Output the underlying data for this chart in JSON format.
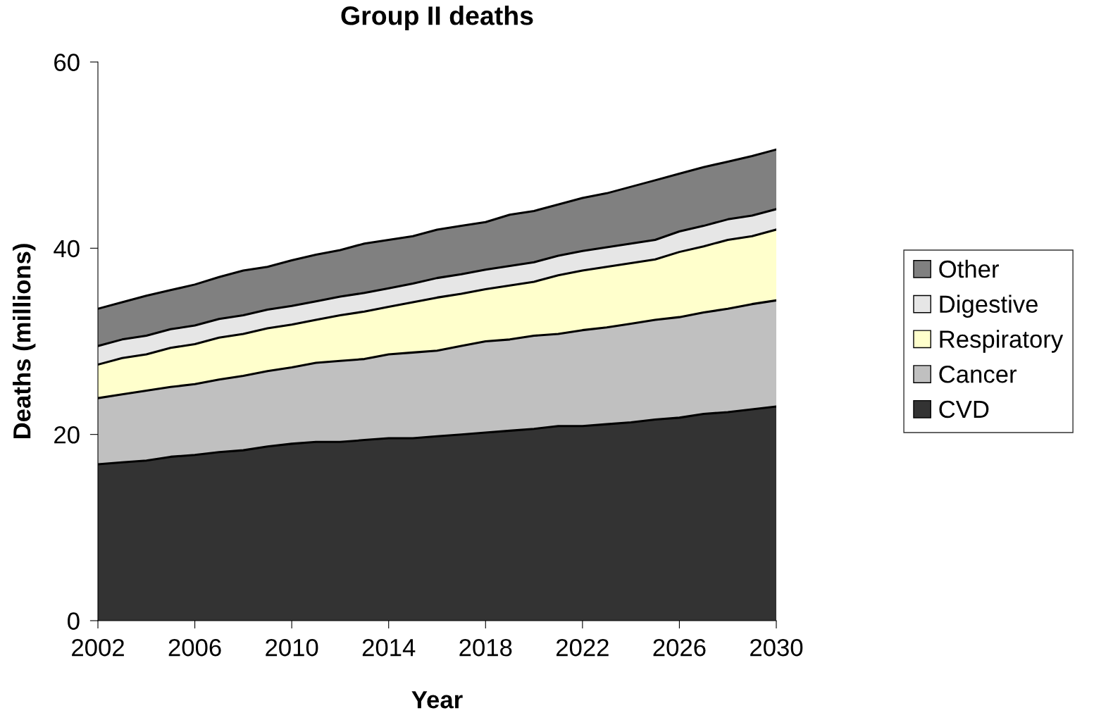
{
  "chart_data": {
    "type": "area",
    "stacked": true,
    "title": "Group II deaths",
    "xlabel": "Year",
    "ylabel": "Deaths (millions)",
    "x": [
      2002,
      2003,
      2004,
      2005,
      2006,
      2007,
      2008,
      2009,
      2010,
      2011,
      2012,
      2013,
      2014,
      2015,
      2016,
      2017,
      2018,
      2019,
      2020,
      2021,
      2022,
      2023,
      2024,
      2025,
      2026,
      2027,
      2028,
      2029,
      2030
    ],
    "series": [
      {
        "name": "CVD",
        "color": "#333333",
        "values": [
          16.8,
          17.0,
          17.2,
          17.6,
          17.8,
          18.1,
          18.3,
          18.7,
          19.0,
          19.2,
          19.2,
          19.4,
          19.6,
          19.6,
          19.8,
          20.0,
          20.2,
          20.4,
          20.6,
          20.9,
          20.9,
          21.1,
          21.3,
          21.6,
          21.8,
          22.2,
          22.4,
          22.7,
          23.0
        ]
      },
      {
        "name": "Cancer",
        "color": "#c0c0c0",
        "values": [
          7.1,
          7.3,
          7.5,
          7.5,
          7.6,
          7.8,
          8.0,
          8.1,
          8.2,
          8.5,
          8.7,
          8.7,
          9.0,
          9.2,
          9.2,
          9.5,
          9.8,
          9.8,
          10.0,
          9.9,
          10.3,
          10.4,
          10.6,
          10.7,
          10.8,
          10.9,
          11.1,
          11.3,
          11.4
        ]
      },
      {
        "name": "Respiratory",
        "color": "#ffffcc",
        "values": [
          3.6,
          3.9,
          3.9,
          4.2,
          4.3,
          4.5,
          4.5,
          4.6,
          4.6,
          4.6,
          4.9,
          5.1,
          5.1,
          5.4,
          5.7,
          5.6,
          5.6,
          5.8,
          5.8,
          6.3,
          6.4,
          6.5,
          6.5,
          6.5,
          7.0,
          7.1,
          7.4,
          7.3,
          7.6
        ]
      },
      {
        "name": "Digestive",
        "color": "#e6e6e6",
        "values": [
          2.0,
          2.0,
          2.0,
          2.0,
          2.0,
          2.0,
          2.0,
          2.0,
          2.0,
          2.0,
          2.0,
          2.0,
          2.0,
          2.0,
          2.1,
          2.1,
          2.1,
          2.1,
          2.1,
          2.1,
          2.1,
          2.1,
          2.1,
          2.1,
          2.2,
          2.2,
          2.2,
          2.2,
          2.2
        ]
      },
      {
        "name": "Other",
        "color": "#808080",
        "values": [
          4.0,
          4.0,
          4.3,
          4.2,
          4.4,
          4.5,
          4.8,
          4.6,
          4.9,
          5.0,
          5.0,
          5.3,
          5.2,
          5.1,
          5.2,
          5.2,
          5.1,
          5.5,
          5.5,
          5.5,
          5.7,
          5.8,
          6.1,
          6.4,
          6.2,
          6.3,
          6.2,
          6.4,
          6.4
        ]
      }
    ],
    "xlim": [
      2002,
      2030
    ],
    "xticks": [
      2002,
      2006,
      2010,
      2014,
      2018,
      2022,
      2026,
      2030
    ],
    "ylim": [
      0,
      60
    ],
    "yticks": [
      0,
      20,
      40,
      60
    ],
    "grid": false,
    "legend": "right"
  }
}
